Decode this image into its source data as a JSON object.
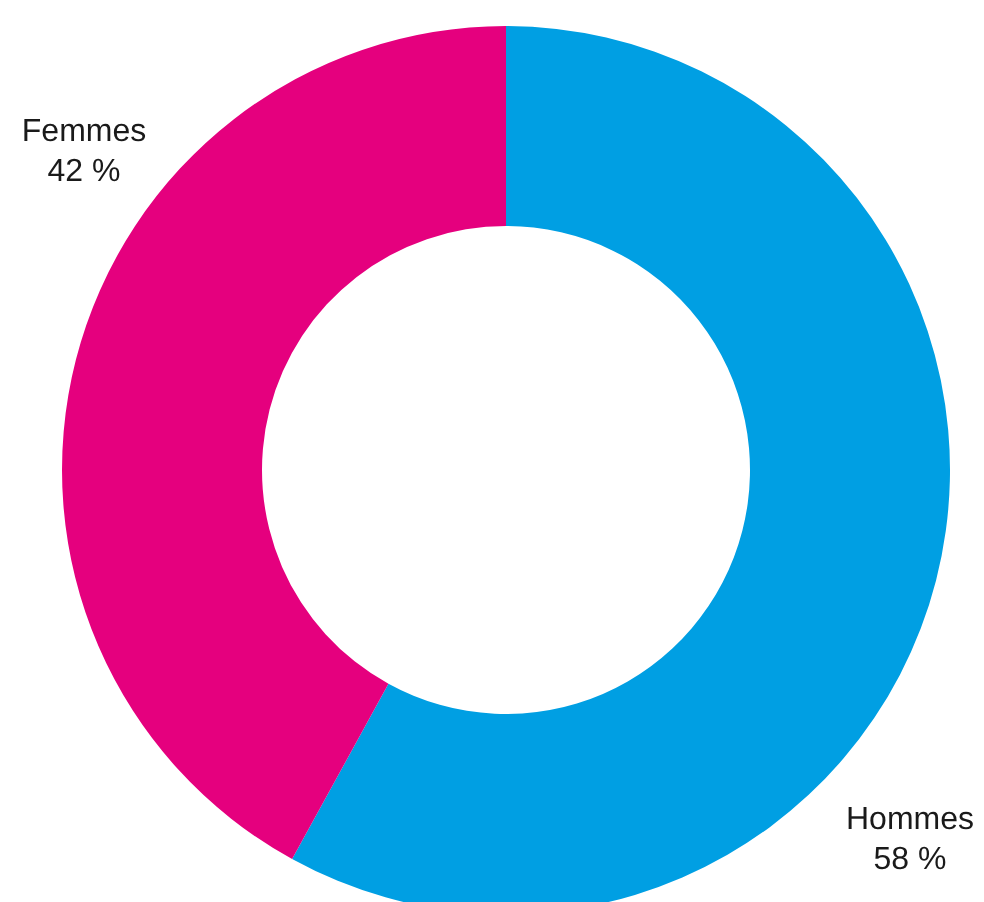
{
  "chart_data": {
    "type": "donut",
    "categories": [
      "Hommes",
      "Femmes"
    ],
    "values": [
      58,
      42
    ],
    "value_labels": [
      "58 %",
      "42 %"
    ],
    "colors": [
      "#009fe3",
      "#e5007e"
    ],
    "legend": false
  }
}
